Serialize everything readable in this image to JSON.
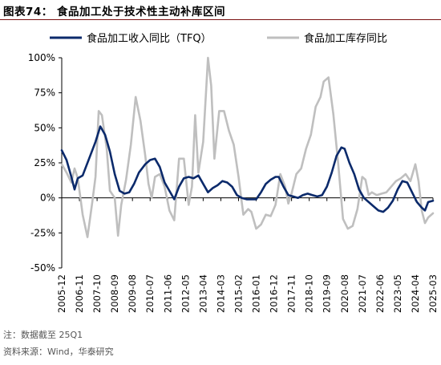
{
  "title": "图表74： 食品加工处于技术性主动补库区间",
  "footer": {
    "note": "注：数据截至 25Q1",
    "source": "资料来源：Wind，华泰研究"
  },
  "colors": {
    "series_1": "#0b2a6b",
    "series_2": "#bfbfbf"
  },
  "chart_data": {
    "type": "line",
    "title": "",
    "xlabel": "",
    "ylabel": "",
    "ylim": [
      -50,
      100
    ],
    "yticks": [
      -50,
      -25,
      0,
      25,
      50,
      75,
      100
    ],
    "ytick_labels": [
      "-50%",
      "-25%",
      "0%",
      "25%",
      "50%",
      "75%",
      "100%"
    ],
    "grid": false,
    "legend_position": "top",
    "x_range": [
      "2005-12",
      "2025-03"
    ],
    "xtick_labels": [
      "2005-12",
      "2006-11",
      "2007-10",
      "2008-09",
      "2009-08",
      "2010-07",
      "2011-06",
      "2012-05",
      "2013-04",
      "2014-03",
      "2015-02",
      "2016-01",
      "2016-12",
      "2017-11",
      "2018-10",
      "2019-09",
      "2020-08",
      "2021-07",
      "2022-06",
      "2023-05",
      "2024-04",
      "2025-03"
    ],
    "series": [
      {
        "name": "食品加工收入同比（TFQ）",
        "color": "#0b2a6b",
        "points": [
          [
            "2005-12",
            34
          ],
          [
            "2006-03",
            27
          ],
          [
            "2006-06",
            15
          ],
          [
            "2006-08",
            6
          ],
          [
            "2006-10",
            14
          ],
          [
            "2007-01",
            16
          ],
          [
            "2007-05",
            28
          ],
          [
            "2007-09",
            40
          ],
          [
            "2007-12",
            51
          ],
          [
            "2008-03",
            45
          ],
          [
            "2008-06",
            33
          ],
          [
            "2008-09",
            17
          ],
          [
            "2008-12",
            5
          ],
          [
            "2009-03",
            3
          ],
          [
            "2009-06",
            4
          ],
          [
            "2009-09",
            10
          ],
          [
            "2009-12",
            18
          ],
          [
            "2010-04",
            24
          ],
          [
            "2010-07",
            27
          ],
          [
            "2010-10",
            28
          ],
          [
            "2011-01",
            22
          ],
          [
            "2011-04",
            11
          ],
          [
            "2011-07",
            5
          ],
          [
            "2011-10",
            -1
          ],
          [
            "2012-01",
            8
          ],
          [
            "2012-04",
            14
          ],
          [
            "2012-07",
            15
          ],
          [
            "2012-10",
            14
          ],
          [
            "2013-01",
            16
          ],
          [
            "2013-04",
            10
          ],
          [
            "2013-07",
            4
          ],
          [
            "2013-10",
            7
          ],
          [
            "2014-01",
            9
          ],
          [
            "2014-04",
            12
          ],
          [
            "2014-07",
            11
          ],
          [
            "2014-10",
            8
          ],
          [
            "2015-01",
            2
          ],
          [
            "2015-04",
            0
          ],
          [
            "2015-07",
            -1
          ],
          [
            "2015-10",
            -1
          ],
          [
            "2016-01",
            -1
          ],
          [
            "2016-04",
            4
          ],
          [
            "2016-07",
            10
          ],
          [
            "2016-10",
            13
          ],
          [
            "2017-01",
            15
          ],
          [
            "2017-03",
            15
          ],
          [
            "2017-06",
            8
          ],
          [
            "2017-09",
            2
          ],
          [
            "2017-12",
            1
          ],
          [
            "2018-03",
            0
          ],
          [
            "2018-06",
            2
          ],
          [
            "2018-09",
            3
          ],
          [
            "2018-12",
            2
          ],
          [
            "2019-03",
            1
          ],
          [
            "2019-06",
            2
          ],
          [
            "2019-09",
            8
          ],
          [
            "2019-12",
            18
          ],
          [
            "2020-03",
            30
          ],
          [
            "2020-06",
            36
          ],
          [
            "2020-08",
            35
          ],
          [
            "2020-11",
            25
          ],
          [
            "2021-02",
            17
          ],
          [
            "2021-05",
            6
          ],
          [
            "2021-08",
            0
          ],
          [
            "2021-11",
            -3
          ],
          [
            "2022-02",
            -6
          ],
          [
            "2022-05",
            -9
          ],
          [
            "2022-08",
            -10
          ],
          [
            "2022-11",
            -7
          ],
          [
            "2023-02",
            -2
          ],
          [
            "2023-05",
            6
          ],
          [
            "2023-08",
            12
          ],
          [
            "2023-11",
            11
          ],
          [
            "2024-02",
            4
          ],
          [
            "2024-05",
            -3
          ],
          [
            "2024-08",
            -7
          ],
          [
            "2024-10",
            -9
          ],
          [
            "2024-12",
            -3
          ],
          [
            "2025-03",
            -2
          ]
        ]
      },
      {
        "name": "食品加工库存同比",
        "color": "#bfbfbf",
        "points": [
          [
            "2005-12",
            24
          ],
          [
            "2006-03",
            18
          ],
          [
            "2006-06",
            11
          ],
          [
            "2006-08",
            21
          ],
          [
            "2006-10",
            14
          ],
          [
            "2007-01",
            -12
          ],
          [
            "2007-04",
            -28
          ],
          [
            "2007-07",
            -3
          ],
          [
            "2007-09",
            15
          ],
          [
            "2007-11",
            62
          ],
          [
            "2008-01",
            59
          ],
          [
            "2008-04",
            35
          ],
          [
            "2008-06",
            5
          ],
          [
            "2008-09",
            0
          ],
          [
            "2008-11",
            -27
          ],
          [
            "2009-01",
            -5
          ],
          [
            "2009-04",
            13
          ],
          [
            "2009-07",
            38
          ],
          [
            "2009-10",
            72
          ],
          [
            "2010-01",
            55
          ],
          [
            "2010-04",
            30
          ],
          [
            "2010-06",
            10
          ],
          [
            "2010-08",
            0
          ],
          [
            "2010-10",
            15
          ],
          [
            "2011-01",
            17
          ],
          [
            "2011-04",
            8
          ],
          [
            "2011-07",
            -9
          ],
          [
            "2011-10",
            -16
          ],
          [
            "2012-01",
            28
          ],
          [
            "2012-04",
            28
          ],
          [
            "2012-07",
            -5
          ],
          [
            "2012-09",
            8
          ],
          [
            "2012-11",
            59
          ],
          [
            "2013-01",
            18
          ],
          [
            "2013-04",
            40
          ],
          [
            "2013-07",
            100
          ],
          [
            "2013-09",
            80
          ],
          [
            "2013-11",
            28
          ],
          [
            "2014-02",
            62
          ],
          [
            "2014-05",
            62
          ],
          [
            "2014-08",
            48
          ],
          [
            "2014-11",
            38
          ],
          [
            "2015-02",
            15
          ],
          [
            "2015-05",
            -12
          ],
          [
            "2015-08",
            -8
          ],
          [
            "2015-10",
            -10
          ],
          [
            "2016-01",
            -22
          ],
          [
            "2016-04",
            -19
          ],
          [
            "2016-07",
            -12
          ],
          [
            "2016-10",
            -13
          ],
          [
            "2017-01",
            -5
          ],
          [
            "2017-04",
            17
          ],
          [
            "2017-07",
            8
          ],
          [
            "2017-09",
            -4
          ],
          [
            "2017-11",
            3
          ],
          [
            "2018-02",
            17
          ],
          [
            "2018-05",
            21
          ],
          [
            "2018-08",
            35
          ],
          [
            "2018-11",
            45
          ],
          [
            "2019-02",
            65
          ],
          [
            "2019-05",
            72
          ],
          [
            "2019-07",
            83
          ],
          [
            "2019-10",
            86
          ],
          [
            "2020-01",
            60
          ],
          [
            "2020-04",
            25
          ],
          [
            "2020-07",
            -15
          ],
          [
            "2020-10",
            -22
          ],
          [
            "2021-01",
            -20
          ],
          [
            "2021-04",
            -8
          ],
          [
            "2021-07",
            15
          ],
          [
            "2021-09",
            13
          ],
          [
            "2021-11",
            2
          ],
          [
            "2022-01",
            4
          ],
          [
            "2022-04",
            2
          ],
          [
            "2022-07",
            3
          ],
          [
            "2022-10",
            4
          ],
          [
            "2023-01",
            8
          ],
          [
            "2023-04",
            12
          ],
          [
            "2023-07",
            14
          ],
          [
            "2023-10",
            17
          ],
          [
            "2024-01",
            12
          ],
          [
            "2024-04",
            24
          ],
          [
            "2024-06",
            12
          ],
          [
            "2024-08",
            -9
          ],
          [
            "2024-10",
            -18
          ],
          [
            "2024-12",
            -14
          ],
          [
            "2025-03",
            -11
          ]
        ]
      }
    ]
  }
}
